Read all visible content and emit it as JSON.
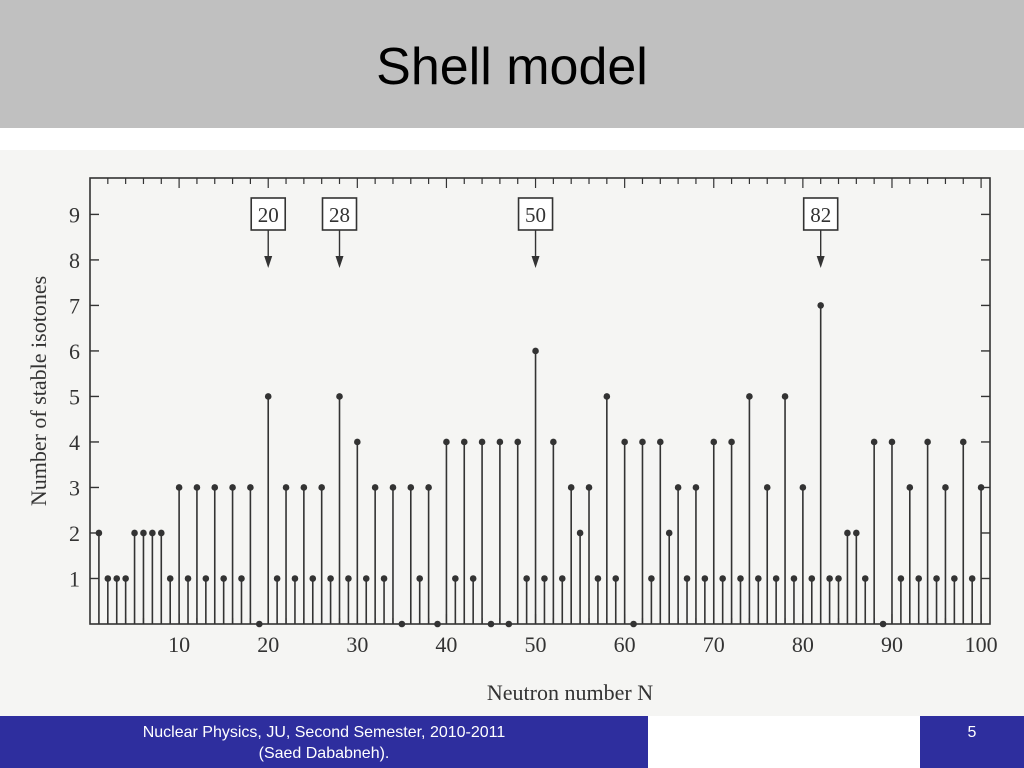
{
  "slide": {
    "title": "Shell model",
    "footer_line1": "Nuclear Physics, JU, Second Semester, 2010-2011",
    "footer_line2": "(Saed Dababneh).",
    "page_number": "5"
  },
  "colors": {
    "title_bar": "#c0c0c0",
    "footer": "#2e2e9e",
    "ink": "#333333"
  },
  "chart_data": {
    "type": "bar",
    "style": "stem",
    "xlabel": "Neutron number N",
    "ylabel": "Number of stable isotones",
    "xlim": [
      0,
      101
    ],
    "ylim": [
      0,
      9.8
    ],
    "xticks": [
      10,
      20,
      30,
      40,
      50,
      60,
      70,
      80,
      90,
      100
    ],
    "yticks": [
      1,
      2,
      3,
      4,
      5,
      6,
      7,
      8,
      9
    ],
    "grid": false,
    "magic_numbers": [
      {
        "label": "20",
        "x": 20
      },
      {
        "label": "28",
        "x": 28
      },
      {
        "label": "50",
        "x": 50
      },
      {
        "label": "82",
        "x": 82
      }
    ],
    "x": [
      1,
      2,
      3,
      4,
      5,
      6,
      7,
      8,
      9,
      10,
      11,
      12,
      13,
      14,
      15,
      16,
      17,
      18,
      19,
      20,
      21,
      22,
      23,
      24,
      25,
      26,
      27,
      28,
      29,
      30,
      31,
      32,
      33,
      34,
      35,
      36,
      37,
      38,
      39,
      40,
      41,
      42,
      43,
      44,
      45,
      46,
      47,
      48,
      49,
      50,
      51,
      52,
      53,
      54,
      55,
      56,
      57,
      58,
      59,
      60,
      61,
      62,
      63,
      64,
      65,
      66,
      67,
      68,
      69,
      70,
      71,
      72,
      73,
      74,
      75,
      76,
      77,
      78,
      79,
      80,
      81,
      82,
      83,
      84,
      85,
      86,
      87,
      88,
      89,
      90,
      91,
      92,
      93,
      94,
      95,
      96,
      97,
      98,
      99,
      100
    ],
    "values": [
      2,
      1,
      1,
      1,
      2,
      2,
      2,
      2,
      1,
      3,
      1,
      3,
      1,
      3,
      1,
      3,
      1,
      3,
      0,
      5,
      1,
      3,
      1,
      3,
      1,
      3,
      1,
      5,
      1,
      4,
      1,
      3,
      1,
      3,
      0,
      3,
      1,
      3,
      0,
      4,
      1,
      4,
      1,
      4,
      0,
      4,
      0,
      4,
      1,
      6,
      1,
      4,
      1,
      3,
      2,
      3,
      1,
      5,
      1,
      4,
      0,
      4,
      1,
      4,
      2,
      3,
      1,
      3,
      1,
      4,
      1,
      4,
      1,
      5,
      1,
      3,
      1,
      5,
      1,
      3,
      1,
      7,
      1,
      1,
      2,
      2,
      1,
      4,
      0,
      4,
      1,
      3,
      1,
      4,
      1,
      3,
      1,
      4,
      1,
      3
    ]
  }
}
